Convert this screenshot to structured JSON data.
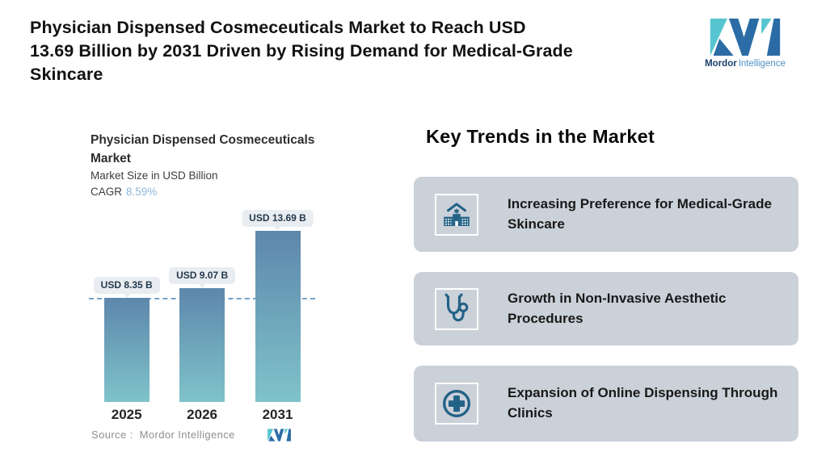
{
  "header": {
    "title_lines": [
      "Physician Dispensed Cosmeceuticals Market to Reach USD",
      "13.69 Billion by 2031 Driven by Rising Demand for Medical-Grade",
      "Skincare"
    ]
  },
  "brand": {
    "name_primary": "Mordor",
    "name_secondary": "Intelligence"
  },
  "chart_data": {
    "type": "bar",
    "title": "Physician Dispensed Cosmeceuticals Market",
    "subtitle": "Market Size in USD Billion",
    "unit": "USD Billion",
    "cagr_label": "CAGR",
    "cagr_value": "8.59%",
    "categories": [
      "2025",
      "2026",
      "2031"
    ],
    "values": [
      8.35,
      9.07,
      13.69
    ],
    "value_labels": [
      "USD 8.35 B",
      "USD 9.07 B",
      "USD 13.69 B"
    ],
    "ylim": [
      0,
      15
    ],
    "grid": false,
    "legend": false,
    "reference_line_y": 8.35,
    "source": "Source :  Mordor Intelligence"
  },
  "trends": {
    "heading": "Key Trends in the Market",
    "items": [
      {
        "icon": "hospital-icon",
        "text": "Increasing Preference for Medical-Grade Skincare"
      },
      {
        "icon": "stethoscope-icon",
        "text": "Growth in Non-Invasive Aesthetic Procedures"
      },
      {
        "icon": "medical-plus-icon",
        "text": "Expansion of Online Dispensing Through Clinics"
      }
    ]
  },
  "theme": {
    "teal": "#56c5d0",
    "blue": "#2b6ca6",
    "navy": "#1a3e6b",
    "mid_blue": "#4f8fc0",
    "bar_top": "#5d87ac",
    "bar_bottom": "#7fc3ca",
    "dash": "#76a3c9",
    "tip_bg": "#e9edf1",
    "tip_text": "#24394e",
    "card_bg": "#cbd1d9",
    "icon": "#236287",
    "cagr": "#8cb6d9"
  }
}
